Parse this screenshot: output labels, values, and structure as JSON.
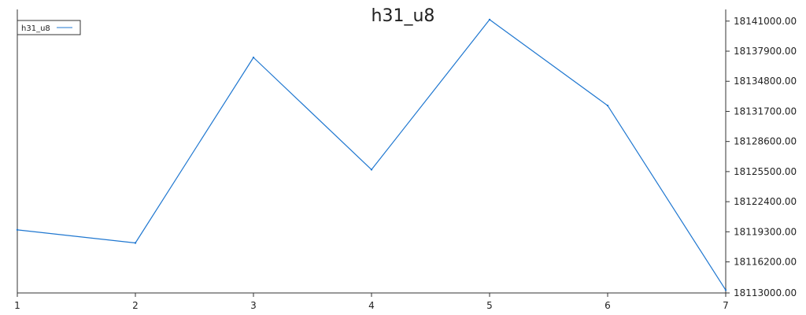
{
  "chart_data": {
    "type": "line",
    "title": "h31_u8",
    "x": [
      1,
      2,
      3,
      4,
      5,
      6,
      7
    ],
    "series": [
      {
        "name": "h31_u8",
        "color": "#1f77d0",
        "values": [
          18119500,
          18118150,
          18137250,
          18125700,
          18141150,
          18132300,
          18113300
        ]
      }
    ],
    "xlim": [
      1,
      7
    ],
    "ylim": [
      18113000,
      18142200
    ],
    "y_ticks": [
      18113000,
      18116200,
      18119300,
      18122400,
      18125500,
      18128600,
      18131700,
      18134800,
      18137900,
      18141000
    ],
    "y_tick_labels": [
      "18113000.00",
      "18116200.00",
      "18119300.00",
      "18122400.00",
      "18125500.00",
      "18128600.00",
      "18131700.00",
      "18134800.00",
      "18137900.00",
      "18141000.00"
    ],
    "x_tick_labels": [
      "1",
      "2",
      "3",
      "4",
      "5",
      "6",
      "7"
    ],
    "y_axis_side": "right",
    "grid": false,
    "legend_position": "top-left"
  }
}
